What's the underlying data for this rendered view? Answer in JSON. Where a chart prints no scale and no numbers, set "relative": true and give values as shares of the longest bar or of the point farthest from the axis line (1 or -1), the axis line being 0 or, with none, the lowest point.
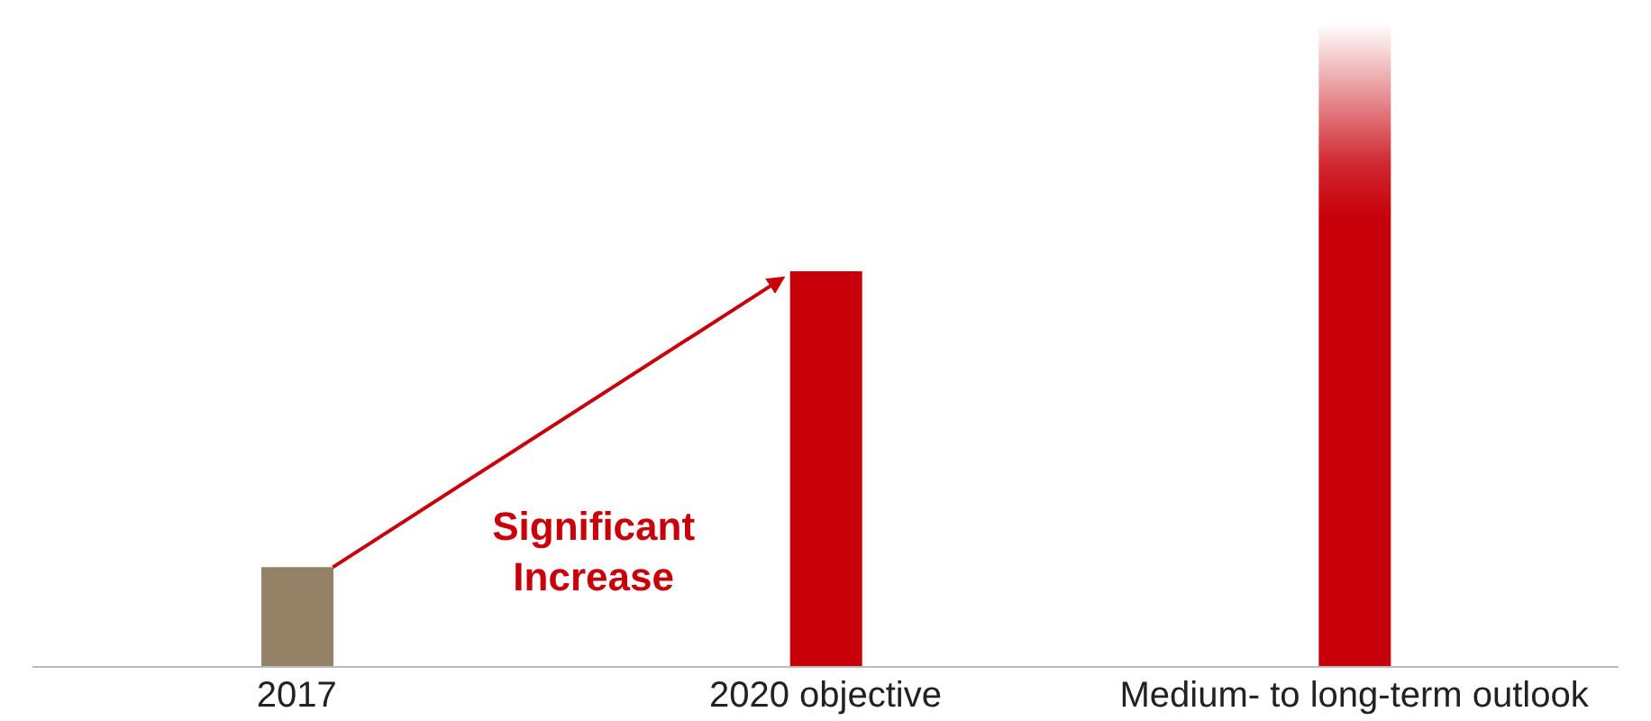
{
  "chart_data": {
    "type": "bar",
    "relative": true,
    "categories": [
      "2017",
      "2020 objective",
      "Medium- to long-term outlook"
    ],
    "values": [
      0.155,
      0.615,
      1
    ],
    "colors": [
      "#948266",
      "#c8000a",
      "#c8000a"
    ],
    "annotations": [
      "Significant Increase"
    ]
  }
}
